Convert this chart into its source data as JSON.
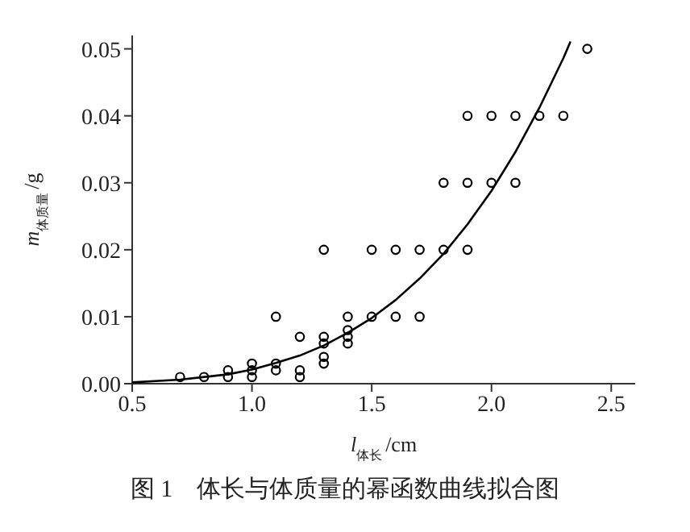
{
  "chart_data": {
    "type": "scatter",
    "title": "图 1　体长与体质量的幂函数曲线拟合图",
    "xlabel": "l$_{体长}$/cm",
    "ylabel": "m$_{体质量}$/g",
    "xlim": [
      0.5,
      2.6
    ],
    "xticks": [
      {
        "value": 0.5,
        "label": "0.5"
      },
      {
        "value": 1,
        "label": "1.0"
      },
      {
        "value": 1.5,
        "label": "1.5"
      },
      {
        "value": 2,
        "label": "2.0"
      },
      {
        "value": 2.5,
        "label": "2.5"
      }
    ],
    "ylim": [
      0,
      0.052
    ],
    "yticks": [
      {
        "value": 0,
        "label": "0.00"
      },
      {
        "value": 0.01,
        "label": "0.01"
      },
      {
        "value": 0.02,
        "label": "0.02"
      },
      {
        "value": 0.03,
        "label": "0.03"
      },
      {
        "value": 0.04,
        "label": "0.04"
      },
      {
        "value": 0.05,
        "label": "0.05"
      }
    ],
    "grid": false,
    "series": [
      {
        "type": "scatter",
        "marker": "circle",
        "color": "#000000",
        "x": [
          0.7,
          0.8,
          0.9,
          0.9,
          1.0,
          1.0,
          1.0,
          1.1,
          1.1,
          1.1,
          1.2,
          1.2,
          1.2,
          1.3,
          1.3,
          1.3,
          1.3,
          1.3,
          1.4,
          1.4,
          1.4,
          1.4,
          1.5,
          1.5,
          1.6,
          1.6,
          1.7,
          1.7,
          1.8,
          1.8,
          1.9,
          1.9,
          1.9,
          2.0,
          2.0,
          2.1,
          2.1,
          2.2,
          2.3,
          2.4
        ],
        "values": [
          0.001,
          0.001,
          0.002,
          0.001,
          0.003,
          0.002,
          0.001,
          0.01,
          0.003,
          0.002,
          0.007,
          0.002,
          0.001,
          0.02,
          0.007,
          0.006,
          0.004,
          0.003,
          0.01,
          0.008,
          0.007,
          0.006,
          0.02,
          0.01,
          0.02,
          0.01,
          0.02,
          0.01,
          0.03,
          0.02,
          0.04,
          0.03,
          0.02,
          0.04,
          0.03,
          0.04,
          0.03,
          0.04,
          0.04,
          0.05
        ]
      },
      {
        "type": "line",
        "marker": "none",
        "line_style": "solid",
        "color": "#000000",
        "x": [
          0.5,
          0.7,
          0.9,
          1.0,
          1.1,
          1.2,
          1.3,
          1.4,
          1.5,
          1.6,
          1.7,
          1.8,
          1.9,
          2.0,
          2.1,
          2.2,
          2.3,
          2.33
        ],
        "values": [
          0.0002,
          0.0006,
          0.0014,
          0.0021,
          0.0031,
          0.0042,
          0.0057,
          0.0076,
          0.0098,
          0.0125,
          0.0157,
          0.0194,
          0.0238,
          0.0288,
          0.0346,
          0.0412,
          0.0486,
          0.0511
        ]
      }
    ]
  }
}
